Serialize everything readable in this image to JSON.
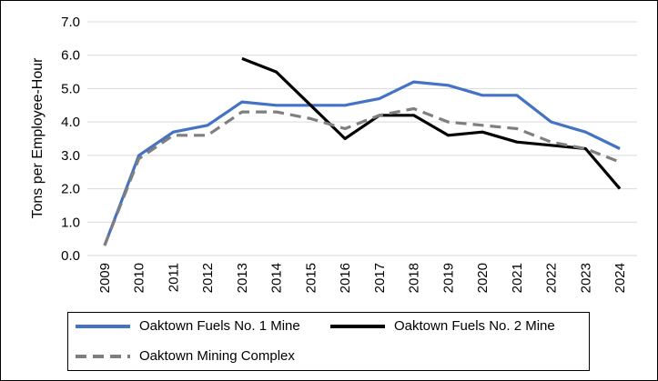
{
  "chart_data": {
    "type": "line",
    "title": "",
    "xlabel": "",
    "ylabel": "Tons per Employee-Hour",
    "ylim": [
      0,
      7
    ],
    "yticks": [
      "0.0",
      "1.0",
      "2.0",
      "3.0",
      "4.0",
      "5.0",
      "6.0",
      "7.0"
    ],
    "categories": [
      "2009",
      "2010",
      "2011",
      "2012",
      "2013",
      "2014",
      "2015",
      "2016",
      "2017",
      "2018",
      "2019",
      "2020",
      "2021",
      "2022",
      "2023",
      "2024"
    ],
    "grid": "horizontal",
    "legend_position": "bottom",
    "series": [
      {
        "name": "Oaktown Fuels No. 1 Mine",
        "color": "#4472C4",
        "style": "solid",
        "values": [
          0.3,
          3.0,
          3.7,
          3.9,
          4.6,
          4.5,
          4.5,
          4.5,
          4.7,
          5.2,
          5.1,
          4.8,
          4.8,
          4.0,
          3.7,
          3.2
        ]
      },
      {
        "name": "Oaktown Fuels No. 2 Mine",
        "color": "#000000",
        "style": "solid",
        "values": [
          null,
          null,
          null,
          null,
          5.9,
          5.5,
          4.5,
          3.5,
          4.2,
          4.2,
          3.6,
          3.7,
          3.4,
          3.3,
          3.2,
          2.0
        ]
      },
      {
        "name": "Oaktown Mining Complex",
        "color": "#7F7F7F",
        "style": "dashed",
        "values": [
          0.3,
          2.9,
          3.6,
          3.6,
          4.3,
          4.3,
          4.1,
          3.8,
          4.2,
          4.4,
          4.0,
          3.9,
          3.8,
          3.4,
          3.2,
          2.8
        ]
      }
    ]
  }
}
